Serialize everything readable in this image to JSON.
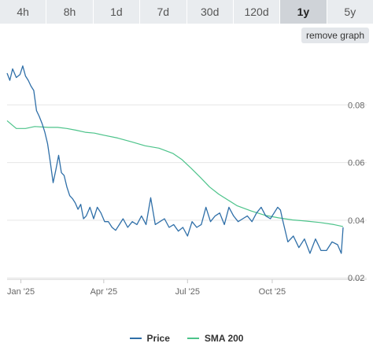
{
  "tabs": [
    {
      "label": "4h",
      "active": false
    },
    {
      "label": "8h",
      "active": false
    },
    {
      "label": "1d",
      "active": false
    },
    {
      "label": "7d",
      "active": false
    },
    {
      "label": "30d",
      "active": false
    },
    {
      "label": "120d",
      "active": false
    },
    {
      "label": "1y",
      "active": true
    },
    {
      "label": "5y",
      "active": false
    }
  ],
  "remove_graph_label": "remove graph",
  "colors": {
    "price": "#2f6fa8",
    "sma": "#4cc38a",
    "grid": "#e6e6e6",
    "axis_text": "#666666"
  },
  "chart_data": {
    "type": "line",
    "x_ticks": [
      "Jan '25",
      "Apr '25",
      "Jul '25",
      "Oct '25"
    ],
    "y_ticks": [
      0.02,
      0.04,
      0.06,
      0.08
    ],
    "ylim": [
      0.0195,
      0.1
    ],
    "grid": true,
    "legend": "bottom-center",
    "series": [
      {
        "name": "Price",
        "color": "#2f6fa8",
        "x": [
          "2024-12-17",
          "2024-12-20",
          "2024-12-23",
          "2024-12-27",
          "2024-12-31",
          "2025-01-03",
          "2025-01-06",
          "2025-01-09",
          "2025-01-12",
          "2025-01-15",
          "2025-01-18",
          "2025-01-21",
          "2025-01-24",
          "2025-01-27",
          "2025-01-30",
          "2025-02-02",
          "2025-02-05",
          "2025-02-08",
          "2025-02-11",
          "2025-02-14",
          "2025-02-17",
          "2025-02-20",
          "2025-02-23",
          "2025-02-26",
          "2025-03-01",
          "2025-03-04",
          "2025-03-07",
          "2025-03-10",
          "2025-03-13",
          "2025-03-17",
          "2025-03-21",
          "2025-03-25",
          "2025-03-29",
          "2025-04-02",
          "2025-04-06",
          "2025-04-10",
          "2025-04-14",
          "2025-04-18",
          "2025-04-22",
          "2025-04-27",
          "2025-05-02",
          "2025-05-07",
          "2025-05-12",
          "2025-05-17",
          "2025-05-22",
          "2025-05-27",
          "2025-06-01",
          "2025-06-06",
          "2025-06-11",
          "2025-06-16",
          "2025-06-21",
          "2025-06-26",
          "2025-07-01",
          "2025-07-06",
          "2025-07-11",
          "2025-07-16",
          "2025-07-21",
          "2025-07-26",
          "2025-07-31",
          "2025-08-05",
          "2025-08-10",
          "2025-08-15",
          "2025-08-20",
          "2025-08-25",
          "2025-08-30",
          "2025-09-04",
          "2025-09-09",
          "2025-09-14",
          "2025-09-19",
          "2025-09-24",
          "2025-09-29",
          "2025-10-03",
          "2025-10-07",
          "2025-10-10",
          "2025-10-12",
          "2025-10-18",
          "2025-10-24",
          "2025-10-30",
          "2025-11-05",
          "2025-11-11",
          "2025-11-17",
          "2025-11-23",
          "2025-11-29",
          "2025-12-05",
          "2025-12-11",
          "2025-12-15",
          "2025-12-17"
        ],
        "y": [
          0.091,
          0.0885,
          0.0925,
          0.0895,
          0.0905,
          0.0935,
          0.09,
          0.0885,
          0.0865,
          0.085,
          0.078,
          0.076,
          0.0735,
          0.0705,
          0.0665,
          0.06,
          0.053,
          0.0575,
          0.0625,
          0.0565,
          0.0555,
          0.0515,
          0.0485,
          0.0475,
          0.046,
          0.0438,
          0.0455,
          0.0405,
          0.0415,
          0.0445,
          0.0405,
          0.0445,
          0.0425,
          0.0395,
          0.0395,
          0.0375,
          0.0365,
          0.0385,
          0.0405,
          0.0375,
          0.0395,
          0.0385,
          0.0415,
          0.0385,
          0.0478,
          0.0385,
          0.0395,
          0.0405,
          0.0375,
          0.0385,
          0.0362,
          0.0375,
          0.0345,
          0.0395,
          0.0375,
          0.0385,
          0.0445,
          0.0395,
          0.0415,
          0.0425,
          0.0385,
          0.0445,
          0.0415,
          0.0395,
          0.0405,
          0.0415,
          0.0395,
          0.0425,
          0.0445,
          0.0415,
          0.0405,
          0.0425,
          0.0445,
          0.0435,
          0.0405,
          0.0325,
          0.0345,
          0.0305,
          0.0335,
          0.0285,
          0.0335,
          0.0295,
          0.0295,
          0.0325,
          0.0315,
          0.0285,
          0.0375
        ]
      },
      {
        "name": "SMA 200",
        "color": "#4cc38a",
        "x": [
          "2024-12-17",
          "2024-12-27",
          "2025-01-06",
          "2025-01-16",
          "2025-01-31",
          "2025-02-10",
          "2025-02-20",
          "2025-03-02",
          "2025-03-12",
          "2025-03-22",
          "2025-04-01",
          "2025-04-16",
          "2025-05-01",
          "2025-05-16",
          "2025-05-31",
          "2025-06-15",
          "2025-06-25",
          "2025-07-05",
          "2025-07-15",
          "2025-07-25",
          "2025-08-04",
          "2025-08-14",
          "2025-08-24",
          "2025-09-08",
          "2025-09-23",
          "2025-10-08",
          "2025-10-23",
          "2025-11-07",
          "2025-11-22",
          "2025-12-07",
          "2025-12-17"
        ],
        "y": [
          0.0745,
          0.0718,
          0.0718,
          0.0725,
          0.0722,
          0.0722,
          0.0718,
          0.0712,
          0.0705,
          0.0702,
          0.0695,
          0.0685,
          0.0672,
          0.0658,
          0.065,
          0.0632,
          0.061,
          0.058,
          0.0548,
          0.0515,
          0.049,
          0.047,
          0.045,
          0.0432,
          0.0417,
          0.0408,
          0.0401,
          0.0397,
          0.0392,
          0.0385,
          0.0378
        ]
      }
    ]
  }
}
